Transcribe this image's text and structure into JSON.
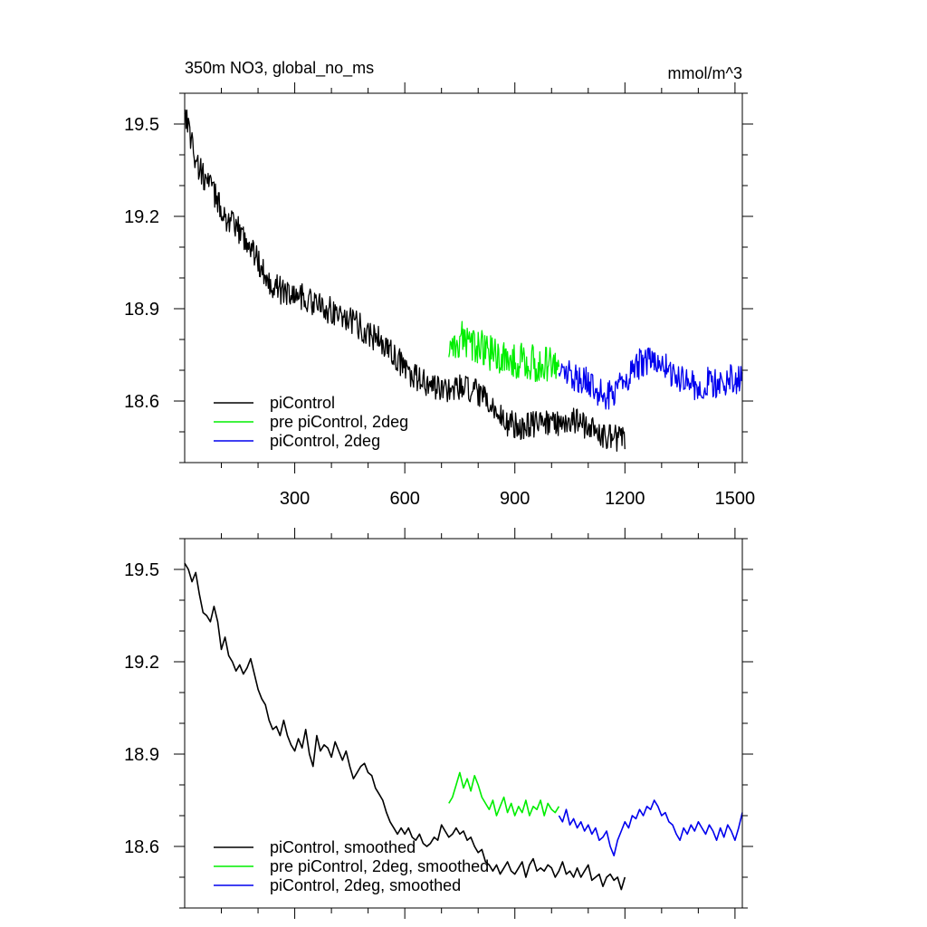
{
  "chart_data": [
    {
      "type": "line",
      "title": "350m NO3, global_no_ms",
      "units": "mmol/m^3",
      "xlim": [
        0,
        1520
      ],
      "ylim": [
        18.4,
        19.6
      ],
      "xticks": [
        300,
        600,
        900,
        1200,
        1500
      ],
      "xtick_labels": [
        "300",
        "600",
        "900",
        "1200",
        "1500"
      ],
      "yticks": [
        18.6,
        18.9,
        19.2,
        19.5
      ],
      "ytick_labels": [
        "18.6",
        "18.9",
        "19.2",
        "19.5"
      ],
      "legend_position": "bottom-left",
      "series": [
        {
          "name": "piControl",
          "color": "#000000",
          "x": [
            0,
            15,
            30,
            50,
            70,
            90,
            110,
            130,
            150,
            170,
            190,
            210,
            230,
            260,
            290,
            320,
            350,
            380,
            410,
            440,
            470,
            500,
            530,
            560,
            590,
            620,
            650,
            680,
            700,
            730,
            760,
            790,
            820,
            850,
            880,
            910,
            940,
            970,
            1000,
            1030,
            1060,
            1090,
            1120,
            1150,
            1180,
            1200
          ],
          "y": [
            19.55,
            19.47,
            19.38,
            19.33,
            19.3,
            19.25,
            19.2,
            19.17,
            19.15,
            19.12,
            19.08,
            19.03,
            18.99,
            18.96,
            18.95,
            18.94,
            18.92,
            18.9,
            18.89,
            18.87,
            18.85,
            18.82,
            18.8,
            18.76,
            18.72,
            18.68,
            18.66,
            18.64,
            18.64,
            18.64,
            18.64,
            18.63,
            18.6,
            18.56,
            18.53,
            18.52,
            18.52,
            18.53,
            18.53,
            18.53,
            18.54,
            18.52,
            18.5,
            18.49,
            18.48,
            18.47
          ]
        },
        {
          "name": "pre piControl, 2deg",
          "color": "#00ee00",
          "x": [
            720,
            740,
            760,
            780,
            800,
            820,
            840,
            860,
            880,
            900,
            920,
            940,
            960,
            980,
            1000,
            1020
          ],
          "y": [
            18.76,
            18.8,
            18.8,
            18.79,
            18.78,
            18.76,
            18.75,
            18.74,
            18.74,
            18.73,
            18.73,
            18.73,
            18.72,
            18.72,
            18.72,
            18.72
          ]
        },
        {
          "name": "piControl, 2deg",
          "color": "#0000ee",
          "x": [
            1020,
            1040,
            1060,
            1080,
            1100,
            1120,
            1140,
            1160,
            1180,
            1200,
            1220,
            1240,
            1260,
            1280,
            1300,
            1320,
            1340,
            1360,
            1380,
            1400,
            1420,
            1440,
            1460,
            1480,
            1500,
            1520
          ],
          "y": [
            18.7,
            18.69,
            18.68,
            18.67,
            18.66,
            18.64,
            18.62,
            18.62,
            18.64,
            18.67,
            18.7,
            18.72,
            18.73,
            18.73,
            18.72,
            18.7,
            18.68,
            18.66,
            18.65,
            18.65,
            18.66,
            18.66,
            18.66,
            18.67,
            18.67,
            18.68
          ]
        }
      ]
    },
    {
      "type": "line",
      "xlim": [
        0,
        1520
      ],
      "ylim": [
        18.4,
        19.6
      ],
      "xticks": [
        300,
        600,
        900,
        1200,
        1500
      ],
      "yticks": [
        18.6,
        18.9,
        19.2,
        19.5
      ],
      "ytick_labels": [
        "18.6",
        "18.9",
        "19.2",
        "19.5"
      ],
      "legend_position": "bottom-left",
      "series": [
        {
          "name": "piControl, smoothed",
          "color": "#000000",
          "x": [
            0,
            10,
            20,
            30,
            40,
            50,
            60,
            70,
            80,
            90,
            100,
            110,
            120,
            130,
            140,
            150,
            160,
            170,
            180,
            190,
            200,
            210,
            220,
            230,
            240,
            250,
            260,
            270,
            280,
            290,
            300,
            310,
            320,
            330,
            340,
            350,
            360,
            370,
            380,
            390,
            400,
            410,
            420,
            430,
            440,
            450,
            460,
            470,
            480,
            490,
            500,
            510,
            520,
            530,
            540,
            550,
            560,
            570,
            580,
            590,
            600,
            610,
            620,
            630,
            640,
            650,
            660,
            670,
            680,
            690,
            700,
            710,
            720,
            730,
            740,
            750,
            760,
            770,
            780,
            790,
            800,
            810,
            820,
            830,
            840,
            850,
            860,
            870,
            880,
            890,
            900,
            910,
            920,
            930,
            940,
            950,
            960,
            970,
            980,
            990,
            1000,
            1010,
            1020,
            1030,
            1040,
            1050,
            1060,
            1070,
            1080,
            1090,
            1100,
            1110,
            1120,
            1130,
            1140,
            1150,
            1160,
            1170,
            1180,
            1190,
            1200
          ],
          "y": [
            19.52,
            19.5,
            19.46,
            19.49,
            19.42,
            19.36,
            19.35,
            19.33,
            19.38,
            19.33,
            19.24,
            19.28,
            19.22,
            19.2,
            19.17,
            19.19,
            19.16,
            19.18,
            19.21,
            19.16,
            19.11,
            19.08,
            19.06,
            19.01,
            18.98,
            18.99,
            18.96,
            19.01,
            18.96,
            18.93,
            18.91,
            18.95,
            18.92,
            18.98,
            18.9,
            18.86,
            18.96,
            18.91,
            18.93,
            18.92,
            18.89,
            18.94,
            18.91,
            18.88,
            18.91,
            18.86,
            18.82,
            18.84,
            18.86,
            18.87,
            18.84,
            18.83,
            18.79,
            18.77,
            18.75,
            18.71,
            18.68,
            18.66,
            18.64,
            18.66,
            18.64,
            18.66,
            18.63,
            18.62,
            18.64,
            18.61,
            18.6,
            18.61,
            18.63,
            18.62,
            18.67,
            18.65,
            18.63,
            18.64,
            18.66,
            18.64,
            18.65,
            18.62,
            18.63,
            18.6,
            18.58,
            18.59,
            18.55,
            18.54,
            18.52,
            18.54,
            18.51,
            18.53,
            18.55,
            18.52,
            18.51,
            18.53,
            18.55,
            18.5,
            18.54,
            18.56,
            18.52,
            18.53,
            18.52,
            18.54,
            18.53,
            18.5,
            18.52,
            18.55,
            18.51,
            18.52,
            18.5,
            18.53,
            18.5,
            18.52,
            18.54,
            18.49,
            18.5,
            18.51,
            18.47,
            18.5,
            18.51,
            18.49,
            18.5,
            18.46,
            18.5
          ]
        },
        {
          "name": "pre piControl, 2deg, smoothed",
          "color": "#00ee00",
          "x": [
            720,
            730,
            740,
            750,
            760,
            770,
            780,
            790,
            800,
            810,
            820,
            830,
            840,
            850,
            860,
            870,
            880,
            890,
            900,
            910,
            920,
            930,
            940,
            950,
            960,
            970,
            980,
            990,
            1000,
            1010,
            1020
          ],
          "y": [
            18.74,
            18.76,
            18.8,
            18.84,
            18.79,
            18.82,
            18.78,
            18.83,
            18.8,
            18.76,
            18.74,
            18.72,
            18.75,
            18.7,
            18.73,
            18.76,
            18.71,
            18.74,
            18.7,
            18.73,
            18.71,
            18.75,
            18.7,
            18.73,
            18.72,
            18.75,
            18.7,
            18.74,
            18.72,
            18.71,
            18.73
          ]
        },
        {
          "name": "piControl, 2deg, smoothed",
          "color": "#0000ee",
          "x": [
            1020,
            1030,
            1040,
            1050,
            1060,
            1070,
            1080,
            1090,
            1100,
            1110,
            1120,
            1130,
            1140,
            1150,
            1160,
            1170,
            1180,
            1190,
            1200,
            1210,
            1220,
            1230,
            1240,
            1250,
            1260,
            1270,
            1280,
            1290,
            1300,
            1310,
            1320,
            1330,
            1340,
            1350,
            1360,
            1370,
            1380,
            1390,
            1400,
            1410,
            1420,
            1430,
            1440,
            1450,
            1460,
            1470,
            1480,
            1490,
            1500,
            1510,
            1520
          ],
          "y": [
            18.7,
            18.68,
            18.72,
            18.67,
            18.69,
            18.66,
            18.68,
            18.65,
            18.67,
            18.64,
            18.66,
            18.62,
            18.63,
            18.65,
            18.6,
            18.57,
            18.62,
            18.65,
            18.68,
            18.66,
            18.7,
            18.69,
            18.72,
            18.7,
            18.73,
            18.72,
            18.75,
            18.73,
            18.7,
            18.71,
            18.68,
            18.67,
            18.64,
            18.62,
            18.66,
            18.64,
            18.67,
            18.65,
            18.68,
            18.66,
            18.64,
            18.67,
            18.65,
            18.62,
            18.66,
            18.63,
            18.67,
            18.65,
            18.62,
            18.66,
            18.71
          ]
        }
      ]
    }
  ]
}
